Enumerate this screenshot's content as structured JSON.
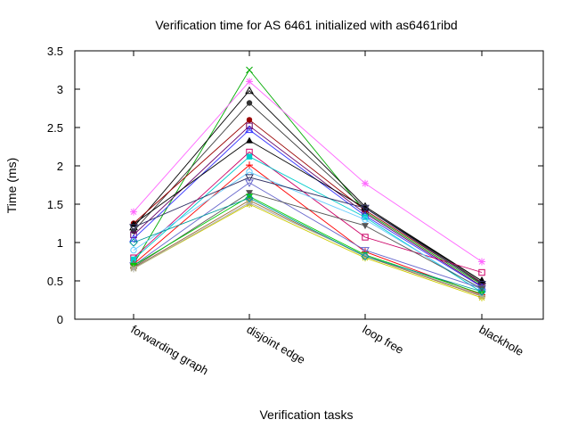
{
  "chart_data": {
    "type": "line",
    "title": "Verification time for AS 6461 initialized with as6461ribd",
    "xlabel": "Verification tasks",
    "ylabel": "Time (ms)",
    "categories": [
      "forwarding graph",
      "disjoint edge",
      "loop free",
      "blackhole"
    ],
    "ylim": [
      0,
      3.5
    ],
    "yticks": [
      "0",
      "0.5",
      "1",
      "1.5",
      "2",
      "2.5",
      "3",
      "3.5"
    ],
    "grid": false,
    "legend": "none",
    "series": [
      {
        "color": "#00aa00",
        "marker": "x",
        "values": [
          0.72,
          3.25,
          1.4,
          0.45
        ]
      },
      {
        "color": "#ff66ff",
        "marker": "asterisk",
        "values": [
          1.4,
          3.1,
          1.77,
          0.75
        ]
      },
      {
        "color": "#000000",
        "marker": "triangle-open",
        "values": [
          1.2,
          2.98,
          1.47,
          0.5
        ]
      },
      {
        "color": "#333333",
        "marker": "circle",
        "values": [
          1.15,
          2.82,
          1.45,
          0.48
        ]
      },
      {
        "color": "#990000",
        "marker": "circle",
        "values": [
          1.25,
          2.6,
          1.42,
          0.47
        ]
      },
      {
        "color": "#660066",
        "marker": "square-open",
        "values": [
          1.1,
          2.52,
          1.38,
          0.43
        ]
      },
      {
        "color": "#3333ff",
        "marker": "triangle-open",
        "values": [
          1.05,
          2.47,
          1.35,
          0.42
        ]
      },
      {
        "color": "#000000",
        "marker": "triangle",
        "values": [
          1.24,
          2.33,
          1.45,
          0.5
        ]
      },
      {
        "color": "#cc0066",
        "marker": "square-open",
        "values": [
          0.8,
          2.18,
          1.07,
          0.61
        ]
      },
      {
        "color": "#00cccc",
        "marker": "square",
        "values": [
          0.78,
          2.12,
          1.33,
          0.35
        ]
      },
      {
        "color": "#ff0000",
        "marker": "plus",
        "values": [
          0.72,
          2.01,
          0.88,
          0.32
        ]
      },
      {
        "color": "#66ccff",
        "marker": "circle-open",
        "values": [
          0.9,
          1.92,
          1.3,
          0.38
        ]
      },
      {
        "color": "#333366",
        "marker": "triangle-down-open",
        "values": [
          1.2,
          1.85,
          1.45,
          0.46
        ]
      },
      {
        "color": "#6666cc",
        "marker": "triangle-down-open",
        "values": [
          0.7,
          1.78,
          0.9,
          0.4
        ]
      },
      {
        "color": "#555555",
        "marker": "triangle-down",
        "values": [
          0.68,
          1.65,
          1.22,
          0.4
        ]
      },
      {
        "color": "#00cc00",
        "marker": "triangle-down",
        "values": [
          0.7,
          1.6,
          0.84,
          0.33
        ]
      },
      {
        "color": "#996633",
        "marker": "asterisk",
        "values": [
          0.67,
          1.55,
          0.82,
          0.3
        ]
      },
      {
        "color": "#cccc00",
        "marker": "asterisk",
        "values": [
          0.66,
          1.5,
          0.8,
          0.28
        ]
      },
      {
        "color": "#aaaaaa",
        "marker": "asterisk",
        "values": [
          0.66,
          1.52,
          0.83,
          0.31
        ]
      },
      {
        "color": "#009999",
        "marker": "diamond-open",
        "values": [
          1.0,
          1.58,
          0.82,
          0.36
        ]
      }
    ]
  }
}
